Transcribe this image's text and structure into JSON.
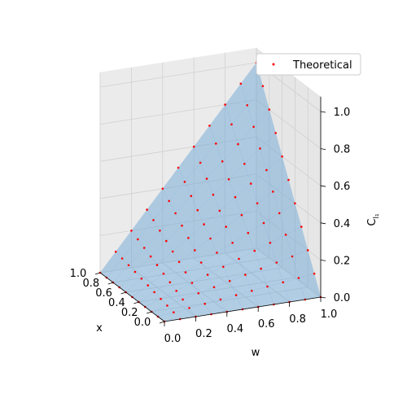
{
  "chart_data": {
    "type": "scatter",
    "title": "",
    "xlabel": "x",
    "ylabel": "w",
    "zlabel_base": "C",
    "zlabel_sub": "l₁",
    "xticks": [
      "0.0",
      "0.2",
      "0.4",
      "0.6",
      "0.8",
      "1.0"
    ],
    "yticks": [
      "0.0",
      "0.2",
      "0.4",
      "0.6",
      "0.8",
      "1.0"
    ],
    "zticks": [
      "0.0",
      "0.2",
      "0.4",
      "0.6",
      "0.8",
      "1.0"
    ],
    "xlim": [
      0,
      1
    ],
    "ylim": [
      0,
      1
    ],
    "zlim": [
      0,
      1
    ],
    "grid": true,
    "legend": {
      "position": "top-right"
    },
    "series": [
      {
        "name": "Theoretical",
        "color": "#ff0000",
        "surface_color": "#6fa8d6",
        "model": "z = x * w (surface and sampled points)",
        "x": [
          0.0,
          0.1,
          0.2,
          0.3,
          0.4,
          0.5,
          0.6,
          0.7,
          0.8,
          0.9,
          1.0
        ],
        "w": [
          0.0,
          0.1,
          0.2,
          0.3,
          0.4,
          0.5,
          0.6,
          0.7,
          0.8,
          0.9,
          1.0
        ]
      }
    ]
  }
}
